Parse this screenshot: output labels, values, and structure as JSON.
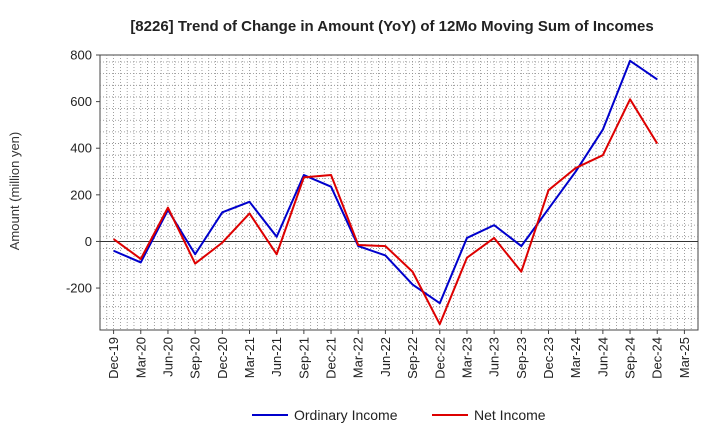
{
  "chart_data": {
    "type": "line",
    "title": "[8226]  Trend of Change in Amount (YoY) of 12Mo Moving Sum of Incomes",
    "xlabel": "",
    "ylabel": "Amount (million yen)",
    "x": [
      "Dec-19",
      "Mar-20",
      "Jun-20",
      "Sep-20",
      "Dec-20",
      "Mar-21",
      "Jun-21",
      "Sep-21",
      "Dec-21",
      "Mar-22",
      "Jun-22",
      "Sep-22",
      "Dec-22",
      "Mar-23",
      "Jun-23",
      "Sep-23",
      "Dec-23",
      "Mar-24",
      "Jun-24",
      "Sep-24",
      "Dec-24",
      "Mar-25"
    ],
    "ylim": [
      -380,
      800
    ],
    "yticks": [
      -200,
      0,
      200,
      400,
      600,
      800
    ],
    "grid": true,
    "legend_position": "bottom",
    "series": [
      {
        "name": "Ordinary Income",
        "color": "#0000cc",
        "values": [
          -40,
          -90,
          135,
          -55,
          125,
          170,
          20,
          285,
          235,
          -20,
          -60,
          -185,
          -265,
          15,
          70,
          -20,
          140,
          300,
          480,
          775,
          695,
          null
        ]
      },
      {
        "name": "Net Income",
        "color": "#dd0000",
        "values": [
          10,
          -75,
          145,
          -95,
          -5,
          120,
          -55,
          275,
          285,
          -15,
          -20,
          -130,
          -355,
          -70,
          15,
          -130,
          220,
          315,
          370,
          610,
          420,
          null
        ]
      }
    ]
  }
}
